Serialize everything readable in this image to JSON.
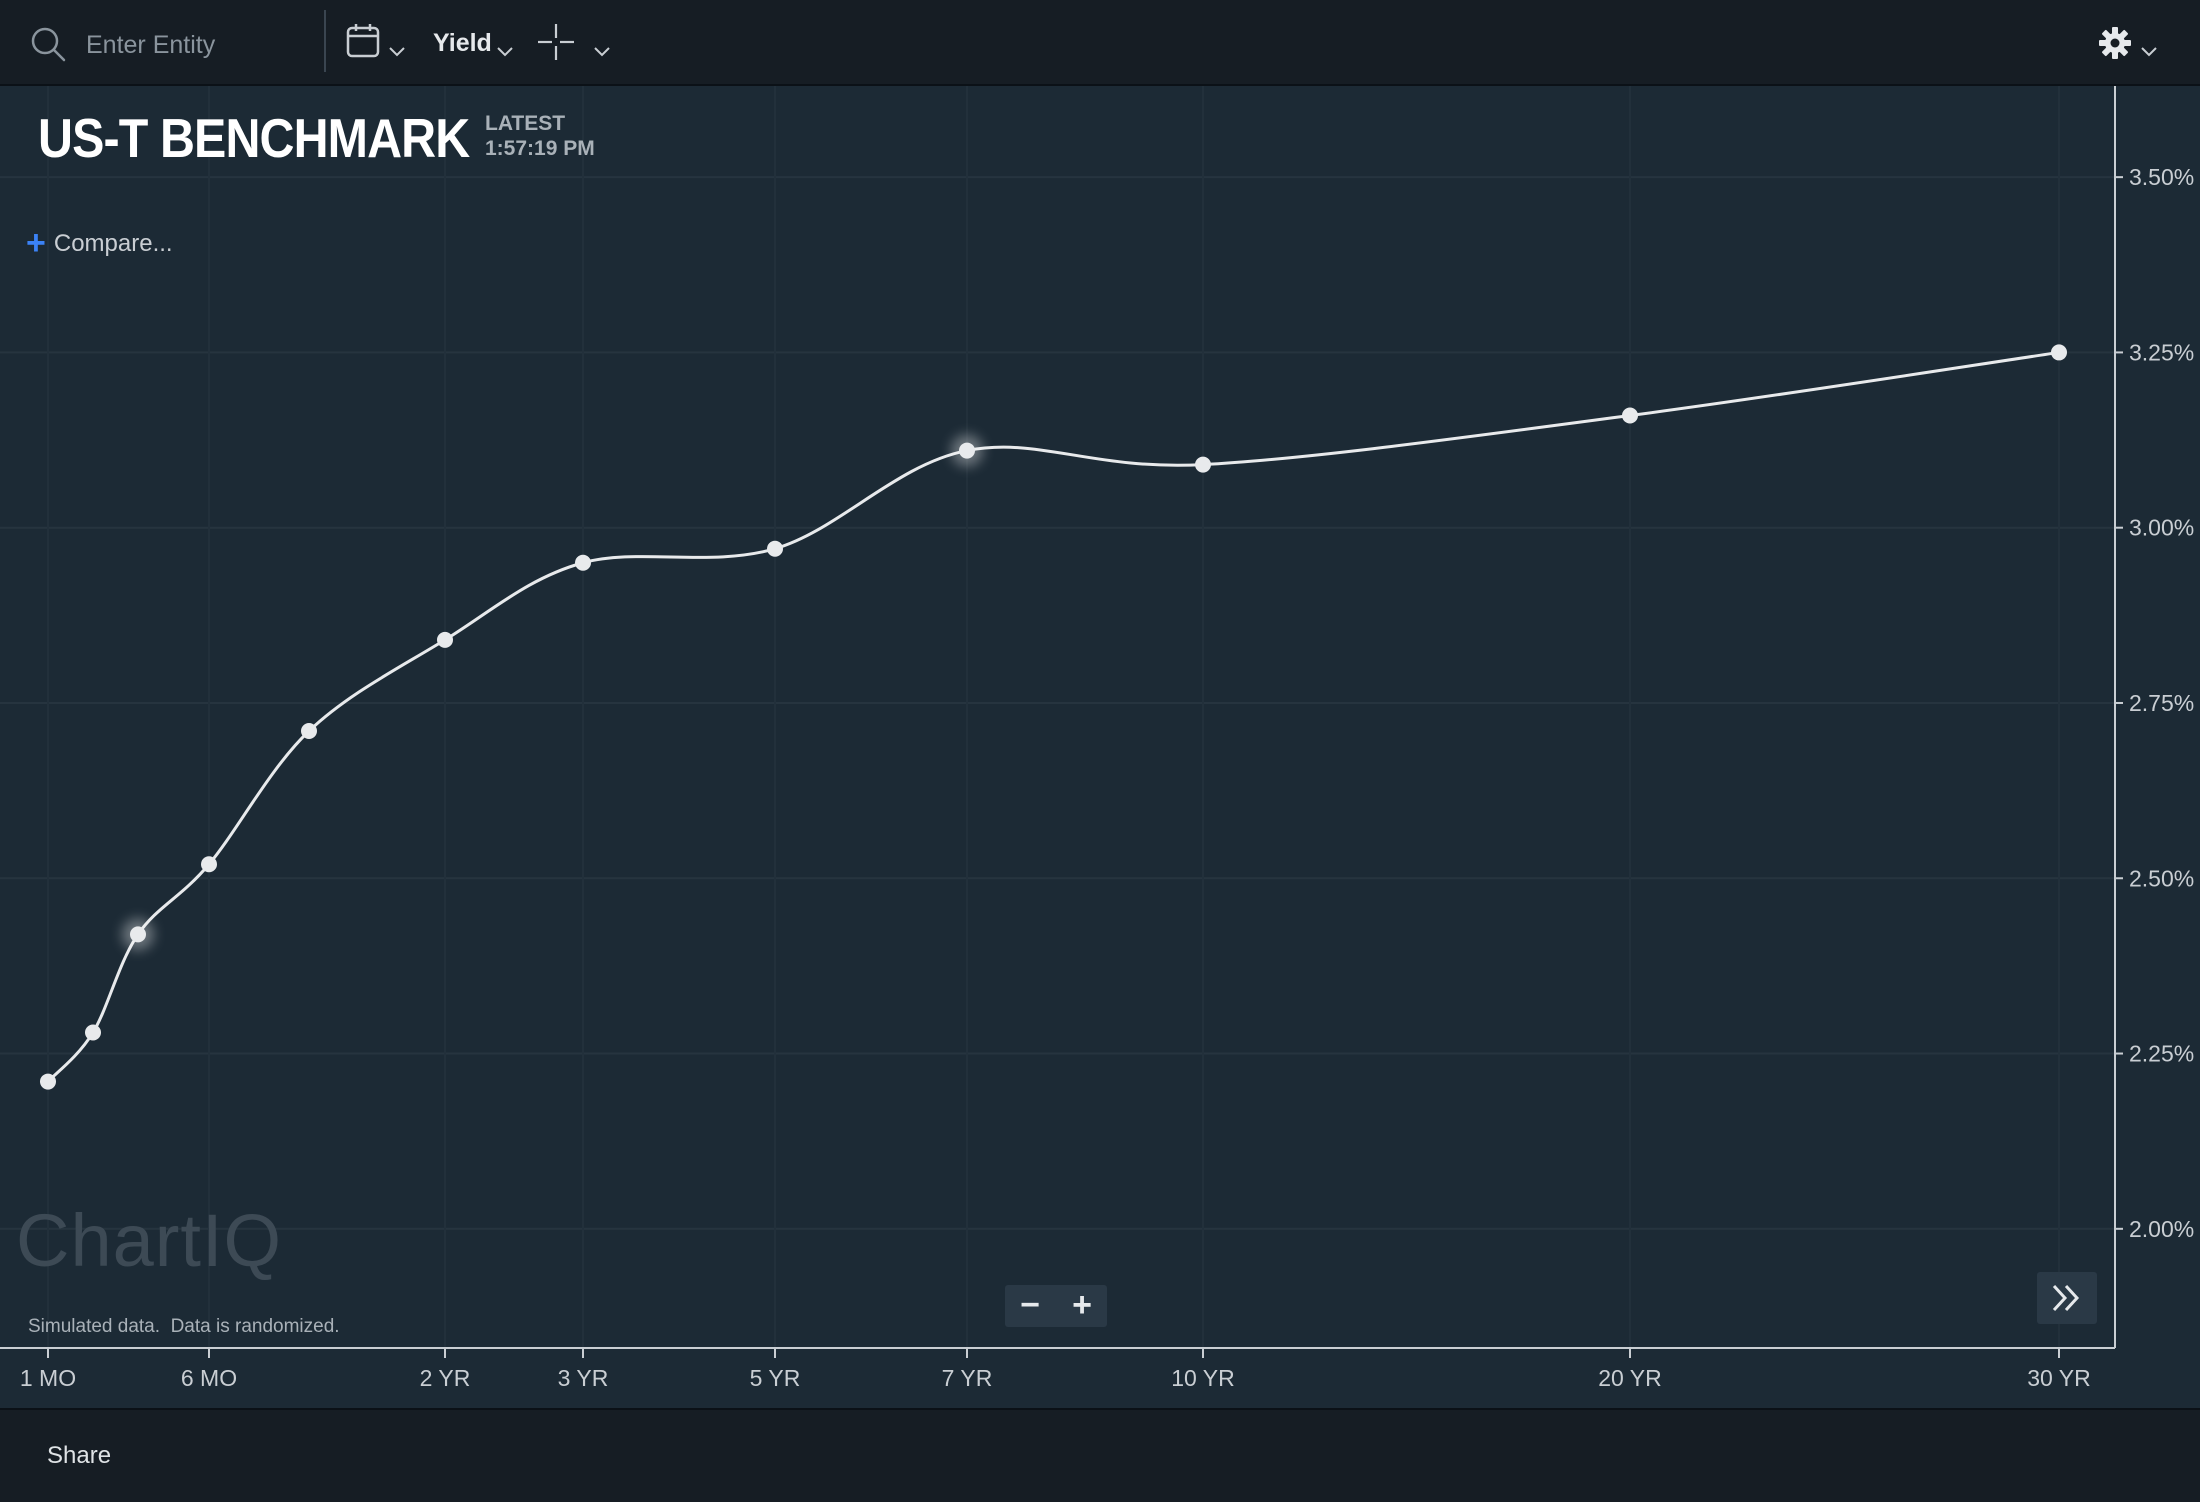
{
  "toolbar": {
    "search_placeholder": "Enter Entity",
    "yield_label": "Yield",
    "icons": [
      "search-icon",
      "calendar-icon",
      "chevron-down-icon",
      "crosshair-icon",
      "gear-icon"
    ]
  },
  "header": {
    "title": "US-T BENCHMARK",
    "latest_label": "LATEST",
    "latest_time": "1:57:19 PM"
  },
  "compare_label": "Compare...",
  "watermark": "ChartIQ",
  "sim_note": "Simulated data.  Data is randomized.",
  "zoom": {
    "minus": "−",
    "plus": "+"
  },
  "footer": {
    "share_label": "Share"
  },
  "colors": {
    "background": "#1c2a35",
    "toolbar": "#161d24",
    "line": "#e8eaec",
    "accent": "#3b82f6"
  },
  "chart_data": {
    "type": "line",
    "series": [
      {
        "points": [
          {
            "x": 1,
            "y": 2.21
          },
          {
            "x": 2,
            "y": 2.28
          },
          {
            "x": 3,
            "y": 2.42
          },
          {
            "x": 6,
            "y": 2.52
          },
          {
            "x": 12,
            "y": 2.71
          },
          {
            "x": 24,
            "y": 2.84
          },
          {
            "x": 36,
            "y": 2.95
          },
          {
            "x": 60,
            "y": 2.97
          },
          {
            "x": 84,
            "y": 3.11
          },
          {
            "x": 120,
            "y": 3.09
          },
          {
            "x": 240,
            "y": 3.16
          },
          {
            "x": 360,
            "y": 3.25
          }
        ]
      }
    ],
    "x_ticks": [
      {
        "x": 1,
        "label": "1 MO"
      },
      {
        "x": 6,
        "label": "6 MO"
      },
      {
        "x": 24,
        "label": "2 YR"
      },
      {
        "x": 36,
        "label": "3 YR"
      },
      {
        "x": 60,
        "label": "5 YR"
      },
      {
        "x": 84,
        "label": "7 YR"
      },
      {
        "x": 120,
        "label": "10 YR"
      },
      {
        "x": 240,
        "label": "20 YR"
      },
      {
        "x": 360,
        "label": "30 YR"
      }
    ],
    "y_ticks": [
      {
        "y": 2.0,
        "label": "2.00%"
      },
      {
        "y": 2.25,
        "label": "2.25%"
      },
      {
        "y": 2.5,
        "label": "2.50%"
      },
      {
        "y": 2.75,
        "label": "2.75%"
      },
      {
        "y": 3.0,
        "label": "3.00%"
      },
      {
        "y": 3.25,
        "label": "3.25%"
      },
      {
        "y": 3.5,
        "label": "3.50%"
      }
    ],
    "ylim": [
      1.83,
      3.63
    ],
    "y_axis_position": "right",
    "grid": true,
    "highlighted_x": [
      3,
      84
    ]
  }
}
